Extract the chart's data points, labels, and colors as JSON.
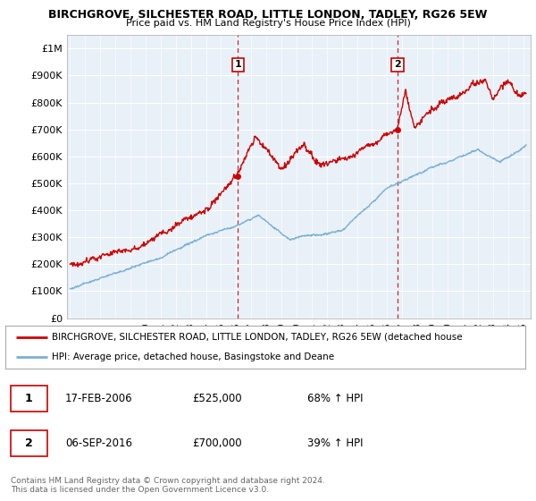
{
  "title": "BIRCHGROVE, SILCHESTER ROAD, LITTLE LONDON, TADLEY, RG26 5EW",
  "subtitle": "Price paid vs. HM Land Registry's House Price Index (HPI)",
  "ylabel_ticks": [
    "£0",
    "£100K",
    "£200K",
    "£300K",
    "£400K",
    "£500K",
    "£600K",
    "£700K",
    "£800K",
    "£900K",
    "£1M"
  ],
  "ytick_values": [
    0,
    100000,
    200000,
    300000,
    400000,
    500000,
    600000,
    700000,
    800000,
    900000,
    1000000
  ],
  "ylim": [
    0,
    1050000
  ],
  "xlim_start": 1994.8,
  "xlim_end": 2025.5,
  "red_color": "#cc0000",
  "blue_color": "#7ab0d4",
  "chart_bg": "#e8f0f8",
  "vline_color": "#cc0000",
  "marker1_x": 2006.12,
  "marker1_y": 525000,
  "marker2_x": 2016.68,
  "marker2_y": 700000,
  "marker1_label": "1",
  "marker2_label": "2",
  "legend_line1": "BIRCHGROVE, SILCHESTER ROAD, LITTLE LONDON, TADLEY, RG26 5EW (detached house",
  "legend_line2": "HPI: Average price, detached house, Basingstoke and Deane",
  "table_row1": [
    "1",
    "17-FEB-2006",
    "£525,000",
    "68% ↑ HPI"
  ],
  "table_row2": [
    "2",
    "06-SEP-2016",
    "£700,000",
    "39% ↑ HPI"
  ],
  "footnote1": "Contains HM Land Registry data © Crown copyright and database right 2024.",
  "footnote2": "This data is licensed under the Open Government Licence v3.0.",
  "background_color": "#ffffff",
  "grid_color": "#ffffff"
}
